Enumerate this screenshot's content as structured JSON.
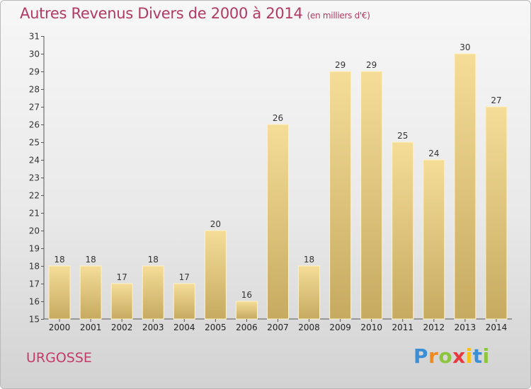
{
  "header": {
    "title": "Autres Revenus Divers de 2000 à 2014",
    "unit": "(en milliers d'€)"
  },
  "footer": {
    "commune": "URGOSSE",
    "logo_letters": [
      "P",
      "r",
      "o",
      "x",
      "i",
      "t",
      "i"
    ],
    "logo_colors": [
      "#3a8fd6",
      "#f28a1e",
      "#8cc63f",
      "#e8383d",
      "#f5c21b",
      "#3a8fd6",
      "#8cc63f"
    ]
  },
  "colors": {
    "title": "#b03a64",
    "bar_light": "#f5dd98",
    "bar_dark": "#c6aa60",
    "axis": "#555555"
  },
  "chart_data": {
    "type": "bar",
    "title": "Autres Revenus Divers de 2000 à 2014",
    "subtitle": "(en milliers d'€)",
    "categories": [
      "2000",
      "2001",
      "2002",
      "2003",
      "2004",
      "2005",
      "2006",
      "2007",
      "2008",
      "2009",
      "2010",
      "2011",
      "2012",
      "2013",
      "2014"
    ],
    "values": [
      18,
      18,
      17,
      18,
      17,
      20,
      16,
      26,
      18,
      29,
      29,
      25,
      24,
      30,
      27
    ],
    "ylim": [
      15,
      31
    ],
    "yticks": [
      15,
      16,
      17,
      18,
      19,
      20,
      21,
      22,
      23,
      24,
      25,
      26,
      27,
      28,
      29,
      30,
      31
    ],
    "grid": false,
    "data_labels": true
  }
}
